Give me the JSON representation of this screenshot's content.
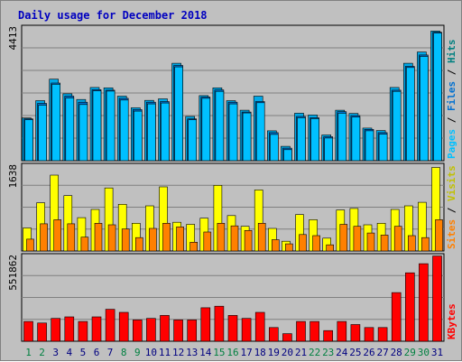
{
  "chart_data": {
    "type": "bar",
    "title": "Daily usage for December 2018",
    "categories": [
      "1",
      "2",
      "3",
      "4",
      "5",
      "6",
      "7",
      "8",
      "9",
      "10",
      "11",
      "12",
      "13",
      "14",
      "15",
      "16",
      "17",
      "18",
      "19",
      "20",
      "21",
      "22",
      "23",
      "24",
      "25",
      "26",
      "27",
      "28",
      "29",
      "30",
      "31"
    ],
    "weekend_days": [
      "1",
      "2",
      "8",
      "9",
      "15",
      "16",
      "22",
      "23",
      "29",
      "30"
    ],
    "colors": {
      "title": "#0000c0",
      "frame": "#c0c0c0",
      "plot_bg": "#c0c0c0",
      "grid": "#808080",
      "hits": "#00a8e8",
      "files": "#0070d0",
      "pages": "#00c0ff",
      "sites": "#ff8000",
      "visits": "#ffff00",
      "kbytes": "#ff0000",
      "weekday_label": "#000080",
      "weekend_label": "#008040"
    },
    "panels": [
      {
        "id": "hits-files-pages",
        "max_label": "4413",
        "ylim": [
          0,
          4413
        ],
        "axis_title_parts": [
          {
            "text": "Pages",
            "color": "#00c0ff"
          },
          {
            "text": " / ",
            "color": "#000000"
          },
          {
            "text": "Files",
            "color": "#0070d0"
          },
          {
            "text": " / ",
            "color": "#000000"
          },
          {
            "text": "Hits",
            "color": "#008080"
          }
        ],
        "series": [
          {
            "name": "Hits",
            "values": [
              1430,
              2010,
              2730,
              2240,
              2050,
              2450,
              2440,
              2160,
              1770,
              2020,
              2070,
              3260,
              1480,
              2180,
              2440,
              2010,
              1690,
              2160,
              1000,
              480,
              1590,
              1530,
              860,
              1690,
              1580,
              1090,
              1010,
              2450,
              3260,
              3640,
              4340
            ]
          },
          {
            "name": "Files",
            "values": [
              1400,
              1920,
              2600,
              2160,
              1960,
              2380,
              2360,
              2090,
              1710,
              1960,
              1980,
              3190,
              1400,
              2130,
              2370,
              1960,
              1630,
              1980,
              940,
              420,
              1480,
              1440,
              800,
              1640,
              1510,
              1050,
              940,
              2360,
              3160,
              3540,
              4300
            ]
          },
          {
            "name": "Pages",
            "values": [
              1370,
              1860,
              2560,
              2100,
              1880,
              2340,
              2330,
              2030,
              1660,
              1900,
              1930,
              3140,
              1370,
              2090,
              2320,
              1900,
              1600,
              1940,
              880,
              370,
              1440,
              1410,
              760,
              1590,
              1460,
              1000,
              890,
              2320,
              3120,
              3490,
              4270
            ]
          }
        ]
      },
      {
        "id": "sites-visits",
        "max_label": "1638",
        "ylim": [
          0,
          1638
        ],
        "axis_title_parts": [
          {
            "text": "Sites",
            "color": "#ff8000"
          },
          {
            "text": " / ",
            "color": "#000000"
          },
          {
            "text": "Visits",
            "color": "#c0c000"
          }
        ],
        "series": [
          {
            "name": "Visits",
            "values": [
              450,
              940,
              1480,
              1080,
              650,
              810,
              1230,
              910,
              540,
              880,
              1250,
              560,
              520,
              640,
              1280,
              690,
              480,
              1190,
              440,
              190,
              710,
              610,
              250,
              800,
              830,
              510,
              540,
              810,
              880,
              950,
              1630
            ]
          },
          {
            "name": "Sites",
            "values": [
              230,
              530,
              610,
              530,
              270,
              540,
              510,
              430,
              260,
              440,
              540,
              470,
              170,
              370,
              540,
              490,
              400,
              540,
              220,
              140,
              320,
              300,
              120,
              520,
              480,
              350,
              310,
              480,
              300,
              260,
              610
            ]
          }
        ]
      },
      {
        "id": "kbytes",
        "max_label": "551862",
        "ylim": [
          0,
          551862
        ],
        "axis_title_parts": [
          {
            "text": "KBytes",
            "color": "#ff0000"
          }
        ],
        "series": [
          {
            "name": "KBytes",
            "values": [
              130000,
              120000,
              150000,
              160000,
              130000,
              160000,
              210000,
              190000,
              140000,
              150000,
              170000,
              140000,
              140000,
              220000,
              230000,
              170000,
              150000,
              190000,
              90000,
              50000,
              130000,
              130000,
              70000,
              130000,
              110000,
              90000,
              90000,
              320000,
              450000,
              510000,
              560000
            ]
          }
        ]
      }
    ]
  }
}
